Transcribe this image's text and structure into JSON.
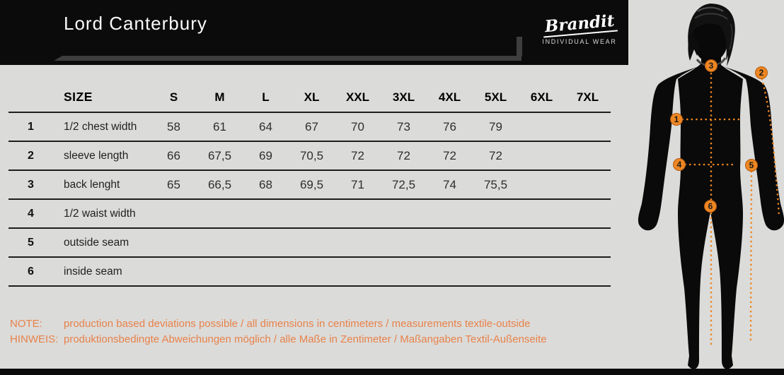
{
  "header": {
    "title": "Lord Canterbury",
    "brand": {
      "name": "Brandit",
      "tagline": "INDIVIDUAL WEAR"
    }
  },
  "table": {
    "size_label": "SIZE",
    "sizes": [
      "S",
      "M",
      "L",
      "XL",
      "XXL",
      "3XL",
      "4XL",
      "5XL",
      "6XL",
      "7XL"
    ],
    "rows": [
      {
        "num": "1",
        "label": "1/2 chest width",
        "values": [
          "58",
          "61",
          "64",
          "67",
          "70",
          "73",
          "76",
          "79",
          "",
          ""
        ]
      },
      {
        "num": "2",
        "label": "sleeve length",
        "values": [
          "66",
          "67,5",
          "69",
          "70,5",
          "72",
          "72",
          "72",
          "72",
          "",
          ""
        ]
      },
      {
        "num": "3",
        "label": "back lenght",
        "values": [
          "65",
          "66,5",
          "68",
          "69,5",
          "71",
          "72,5",
          "74",
          "75,5",
          "",
          ""
        ]
      },
      {
        "num": "4",
        "label": "1/2 waist width",
        "values": [
          "",
          "",
          "",
          "",
          "",
          "",
          "",
          "",
          "",
          ""
        ]
      },
      {
        "num": "5",
        "label": "outside seam",
        "values": [
          "",
          "",
          "",
          "",
          "",
          "",
          "",
          "",
          "",
          ""
        ]
      },
      {
        "num": "6",
        "label": "inside seam",
        "values": [
          "",
          "",
          "",
          "",
          "",
          "",
          "",
          "",
          "",
          ""
        ]
      }
    ]
  },
  "notes": {
    "note_label": "NOTE:",
    "note_text": "production based deviations possible / all dimensions in centimeters / measurements textile-outside",
    "hinweis_label": "HINWEIS:",
    "hinweis_text": "produktionsbedingte Abweichungen möglich / alle Maße in Zentimeter / Maßangaben Textil-Außenseite"
  },
  "figure": {
    "markers": [
      "1",
      "2",
      "3",
      "4",
      "5",
      "6"
    ]
  },
  "colors": {
    "background": "#DBDBD9",
    "header_black": "#0B0B0B",
    "accent_orange": "#ED8622",
    "note_orange": "#E8824A",
    "table_line": "#1D1D1D"
  }
}
